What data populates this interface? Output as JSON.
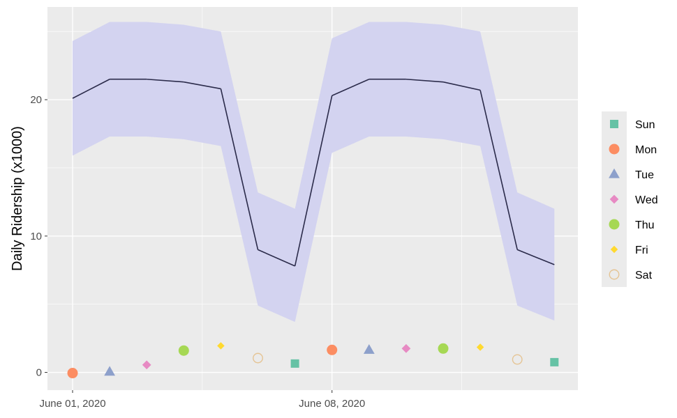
{
  "chart_data": {
    "type": "line",
    "title": "",
    "xlabel": "",
    "ylabel": "Daily Ridership (x1000)",
    "x_tick_labels": [
      "June 01, 2020",
      "June 08, 2020"
    ],
    "y_ticks": [
      0,
      10,
      20
    ],
    "ylim": [
      -1.3,
      26.8
    ],
    "grid": true,
    "x": [
      "2020-06-01",
      "2020-06-02",
      "2020-06-03",
      "2020-06-04",
      "2020-06-05",
      "2020-06-06",
      "2020-06-07",
      "2020-06-08",
      "2020-06-09",
      "2020-06-10",
      "2020-06-11",
      "2020-06-12",
      "2020-06-13",
      "2020-06-14"
    ],
    "forecast": {
      "mean": [
        20.1,
        21.5,
        21.5,
        21.3,
        20.8,
        9.0,
        7.8,
        20.3,
        21.5,
        21.5,
        21.3,
        20.7,
        9.0,
        7.9
      ],
      "lower": [
        15.9,
        17.3,
        17.3,
        17.1,
        16.6,
        4.9,
        3.7,
        16.1,
        17.3,
        17.3,
        17.1,
        16.6,
        4.9,
        3.8
      ],
      "upper": [
        24.3,
        25.7,
        25.7,
        25.5,
        25.0,
        13.2,
        12.0,
        24.5,
        25.7,
        25.7,
        25.5,
        25.0,
        13.2,
        12.0
      ],
      "line_color": "#2b2b4a",
      "band_color": "#d3d3f0"
    },
    "points": [
      {
        "date": "2020-06-01",
        "day": "Mon",
        "value": -0.05
      },
      {
        "date": "2020-06-02",
        "day": "Tue",
        "value": 0.05
      },
      {
        "date": "2020-06-03",
        "day": "Wed",
        "value": 0.55
      },
      {
        "date": "2020-06-04",
        "day": "Thu",
        "value": 1.6
      },
      {
        "date": "2020-06-05",
        "day": "Fri",
        "value": 1.95
      },
      {
        "date": "2020-06-06",
        "day": "Sat",
        "value": 1.05
      },
      {
        "date": "2020-06-07",
        "day": "Sun",
        "value": 0.65
      },
      {
        "date": "2020-06-08",
        "day": "Mon",
        "value": 1.65
      },
      {
        "date": "2020-06-09",
        "day": "Tue",
        "value": 1.65
      },
      {
        "date": "2020-06-10",
        "day": "Wed",
        "value": 1.75
      },
      {
        "date": "2020-06-11",
        "day": "Thu",
        "value": 1.75
      },
      {
        "date": "2020-06-12",
        "day": "Fri",
        "value": 1.85
      },
      {
        "date": "2020-06-13",
        "day": "Sat",
        "value": 0.95
      },
      {
        "date": "2020-06-14",
        "day": "Sun",
        "value": 0.75
      }
    ],
    "legend": {
      "position": "right",
      "entries": [
        {
          "label": "Sun",
          "shape": "square",
          "color": "#66c2a5"
        },
        {
          "label": "Mon",
          "shape": "circle",
          "color": "#fc8d62"
        },
        {
          "label": "Tue",
          "shape": "triangle",
          "color": "#8da0cb"
        },
        {
          "label": "Wed",
          "shape": "diamond",
          "color": "#e78ac3"
        },
        {
          "label": "Thu",
          "shape": "circle",
          "color": "#a6d854"
        },
        {
          "label": "Fri",
          "shape": "small-diamond",
          "color": "#ffd92f"
        },
        {
          "label": "Sat",
          "shape": "open-circle",
          "color": "#e5c494"
        }
      ]
    },
    "panel_color": "#ebebeb",
    "grid_color": "#ffffff"
  }
}
